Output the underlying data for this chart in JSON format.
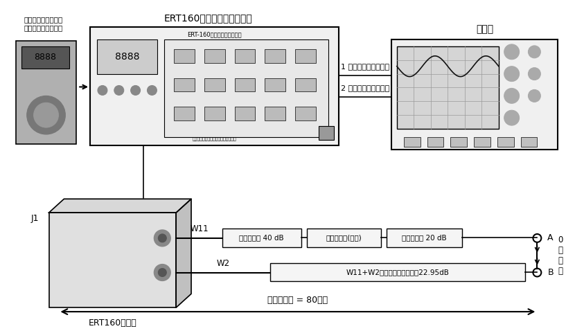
{
  "bg_color": "#ffffff",
  "fig_width": 8.3,
  "fig_height": 4.78,
  "dpi": 100,
  "labels": {
    "top_left_note": "数字电压表和模拟显\n示器连接到模拟输出",
    "ert160_tester_title": "ERT160无线电高度计试验器",
    "oscilloscope_title": "示波器",
    "channel1_label": "1 通道连接到差拍检测",
    "channel2_label": "2 通道连接到同步检测",
    "j1_label": "J1",
    "w11_label": "W11",
    "w2_label": "W2",
    "attenuator1_label": "固定衰减器 40 dB",
    "variable_att_label": "可变衰减器(连续)",
    "attenuator2_label": "固定衰减器 20 dB",
    "combined_label": "W11+W2延迟线的衰减约等于22.95dB",
    "A_label": "A",
    "B_label": "B",
    "delay_label": "0\n延\n迟\n线",
    "ert160_tx_label": "ERT160收发机",
    "bottom_arrow_label": "飞机延迟线 = 80英尺",
    "tester_inner": "ERT-160无线电高度计试验器",
    "company": "中普信无线网络网络服务支援有限公司"
  }
}
